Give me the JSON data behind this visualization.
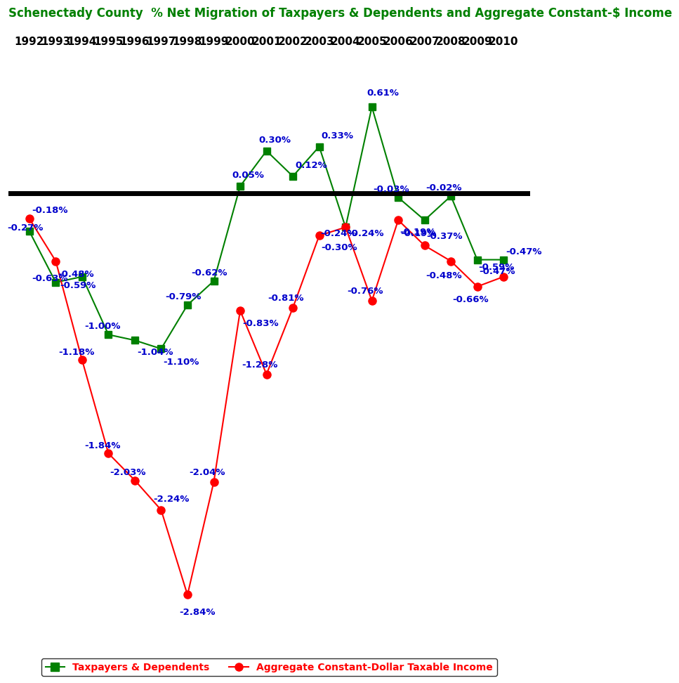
{
  "title": "Schenectady County  % Net Migration of Taxpayers & Dependents and Aggregate Constant-$ Income",
  "title_color": "#008000",
  "years": [
    1992,
    1993,
    1994,
    1995,
    1996,
    1997,
    1998,
    1999,
    2000,
    2001,
    2002,
    2003,
    2004,
    2005,
    2006,
    2007,
    2008,
    2009,
    2010
  ],
  "green_values": [
    -0.27,
    -0.63,
    -0.59,
    -1.0,
    -1.04,
    -1.1,
    -0.79,
    -0.62,
    0.05,
    0.3,
    0.12,
    0.33,
    -0.24,
    0.61,
    -0.03,
    -0.19,
    -0.02,
    -0.47,
    -0.47
  ],
  "red_values": [
    -0.18,
    -0.48,
    -1.18,
    -1.84,
    -2.03,
    -2.24,
    -2.84,
    -2.04,
    -0.83,
    -1.28,
    -0.81,
    -0.3,
    -0.24,
    -0.76,
    -0.19,
    -0.37,
    -0.48,
    -0.66,
    -0.59
  ],
  "green_labels": [
    "-0.27%",
    "-0.63%",
    "-0.59%",
    "-1.00%",
    "-1.04%",
    "-1.10%",
    "-0.79%",
    "-0.62%",
    "0.05%",
    "0.30%",
    "0.12%",
    "0.33%",
    "-0.24%",
    "0.61%",
    "-0.03%",
    "-0.19%",
    "-0.02%",
    "-0.47%",
    "-0.47%"
  ],
  "red_labels": [
    "-0.18%",
    "-0.48%",
    "-1.18%",
    "-1.84%",
    "-2.03%",
    "-2.24%",
    "-2.84%",
    "-2.04%",
    "-0.83%",
    "-1.28%",
    "-0.81%",
    "-0.30%",
    "-0.24%",
    "-0.76%",
    "-0.19%",
    "-0.37%",
    "-0.48%",
    "-0.66%",
    "-0.59%"
  ],
  "green_color": "#008000",
  "red_color": "#FF0000",
  "label_color": "#0000CC",
  "background_color": "#FFFFFF",
  "hline_y": 0.0,
  "ylim": [
    -3.1,
    1.0
  ],
  "legend_green": "Taxpayers & Dependents",
  "legend_red": "Aggregate Constant-Dollar Taxable Income",
  "x_tick_fontsize": 11,
  "title_fontsize": 12,
  "label_fontsize": 9.5
}
